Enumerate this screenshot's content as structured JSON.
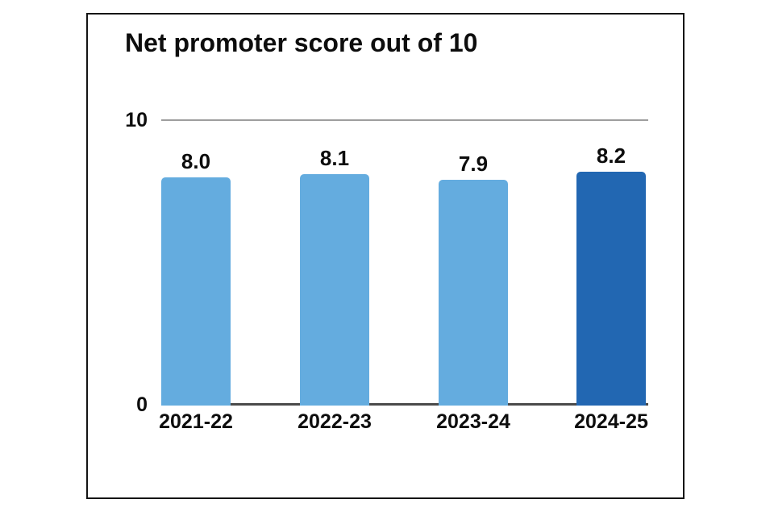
{
  "chart": {
    "y_top_label": "10",
    "y_bottom_label": "0"
  },
  "chart_data": {
    "type": "bar",
    "title": "Net promoter score out of 10",
    "categories": [
      "2021-22",
      "2022-23",
      "2023-24",
      "2024-25"
    ],
    "values": [
      8.0,
      8.1,
      7.9,
      8.2
    ],
    "value_labels": [
      "8.0",
      "8.1",
      "7.9",
      "8.2"
    ],
    "xlabel": "",
    "ylabel": "",
    "ylim": [
      0,
      10
    ],
    "yticks": [
      0,
      10
    ],
    "grid": "single horizontal gridline at y=10, baseline at y=0",
    "legend_position": "none",
    "bar_colors": [
      "#64ACDF",
      "#64ACDF",
      "#64ACDF",
      "#2267B2"
    ],
    "colors": {
      "bar_light": "#64ACDF",
      "bar_dark": "#2267B2",
      "gridline": "#9E9E9E",
      "baseline": "#4A4A4A",
      "frame_border": "#141414",
      "text": "#0D0D0D",
      "background": "#FFFFFF"
    }
  }
}
